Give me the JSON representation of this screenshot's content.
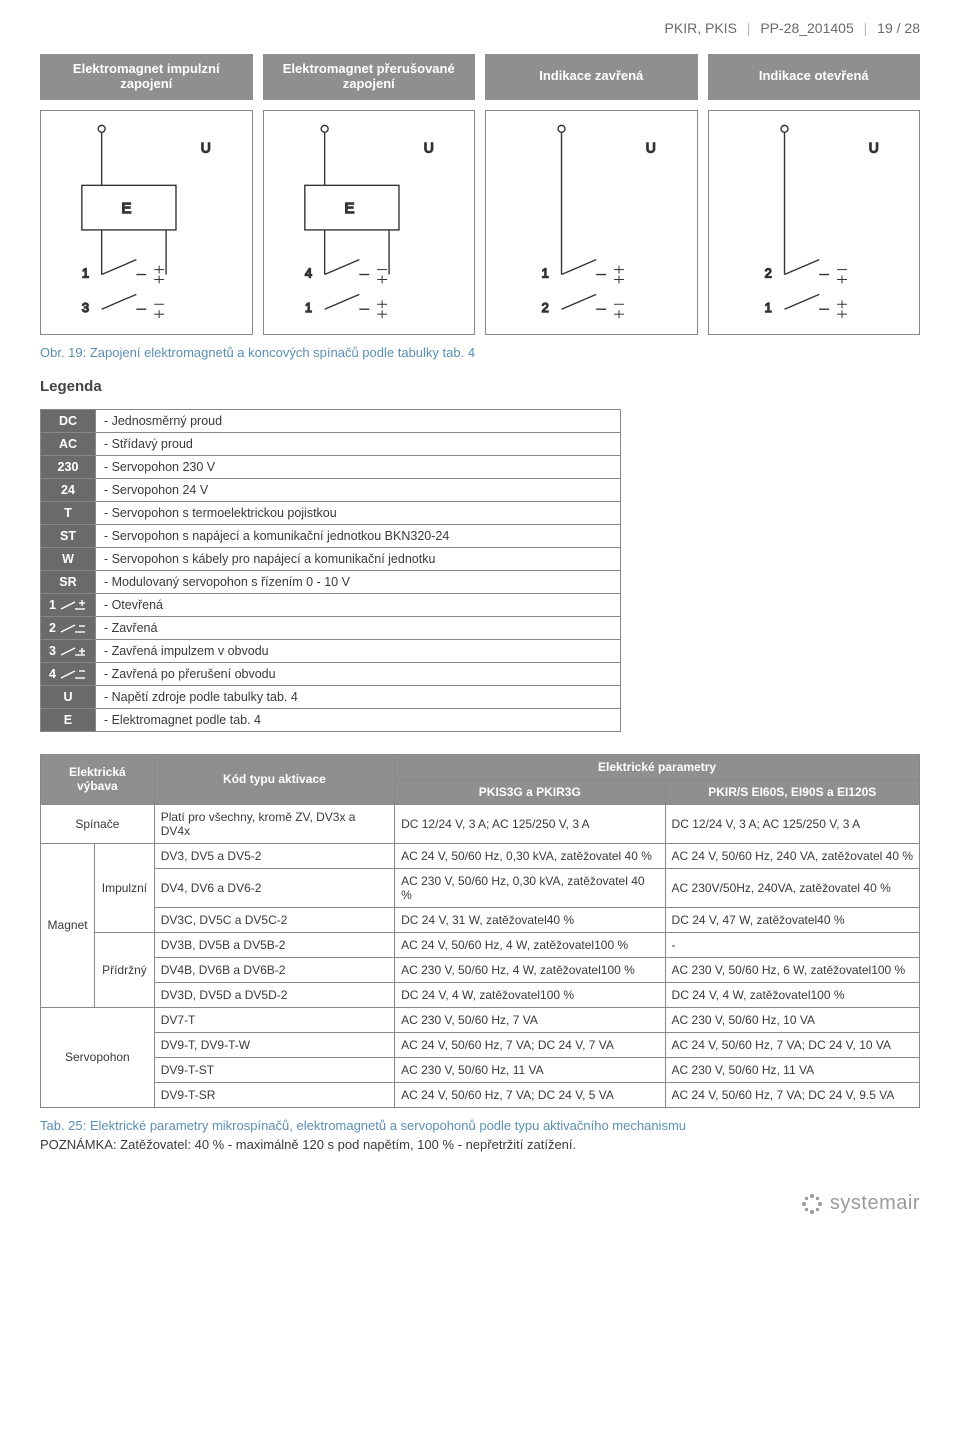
{
  "header": {
    "left": "PKIR, PKIS",
    "mid": "PP-28_201405",
    "right": "19 / 28"
  },
  "col_heads": [
    "Elektromagnet impulzní zapojení",
    "Elektromagnet přerušované zapojení",
    "Indikace zavřená",
    "Indikace otevřená"
  ],
  "caption_fig": "Obr. 19: Zapojení elektromagnetů a koncových spínačů podle tabulky tab. 4",
  "legenda_title": "Legenda",
  "legenda_rows": [
    {
      "k": "DC",
      "v": "- Jednosměrný proud"
    },
    {
      "k": "AC",
      "v": "- Střídavý proud"
    },
    {
      "k": "230",
      "v": "- Servopohon 230 V"
    },
    {
      "k": "24",
      "v": "- Servopohon 24 V"
    },
    {
      "k": "T",
      "v": "- Servopohon s termoelektrickou pojistkou"
    },
    {
      "k": "ST",
      "v": "- Servopohon s napájecí a komunikační jednotkou BKN320-24"
    },
    {
      "k": "W",
      "v": "- Servopohon s kábely pro napájecí a komunikační jednotku"
    },
    {
      "k": "SR",
      "v": "- Modulovaný servopohon s řízením 0 - 10 V"
    }
  ],
  "legenda_sym": [
    {
      "n": "1",
      "v": "- Otevřená"
    },
    {
      "n": "2",
      "v": "- Zavřená"
    },
    {
      "n": "3",
      "v": "- Zavřená impulzem v obvodu"
    },
    {
      "n": "4",
      "v": "- Zavřená po přerušení obvodu"
    }
  ],
  "legenda_tail": [
    {
      "k": "U",
      "v": "- Napětí zdroje podle tabulky tab. 4"
    },
    {
      "k": "E",
      "v": "- Elektromagnet podle tab. 4"
    }
  ],
  "table_head": {
    "c1": "Elektrická výbava",
    "c2": "Kód typu aktivace",
    "grp": "Elektrické parametry",
    "c3": "PKIS3G a PKIR3G",
    "c4": "PKIR/S EI60S, EI90S a EI120S"
  },
  "row_spin": {
    "l": "Spínače",
    "c2": "Platí pro všechny, kromě ZV, DV3x a DV4x",
    "c3": "DC 12/24 V, 3 A; AC 125/250 V, 3 A",
    "c4": "DC 12/24 V, 3 A; AC 125/250 V, 3 A"
  },
  "magnet_label": "Magnet",
  "impulz_label": "Impulzní",
  "pridrz_label": "Přídržný",
  "servo_label": "Servopohon",
  "magnet_rows": [
    {
      "c2": "DV3, DV5 a DV5-2",
      "c3": "AC 24 V, 50/60 Hz, 0,30 kVA, zatěžovatel 40 %",
      "c4": "AC 24 V, 50/60 Hz, 240 VA, zatěžovatel 40 %"
    },
    {
      "c2": "DV4, DV6 a DV6-2",
      "c3": "AC 230 V, 50/60 Hz, 0,30 kVA, zatěžovatel 40 %",
      "c4": "AC 230V/50Hz, 240VA, zatěžovatel 40 %"
    },
    {
      "c2": "DV3C, DV5C a DV5C-2",
      "c3": "DC 24 V, 31 W, zatěžovatel40 %",
      "c4": "DC 24 V, 47 W, zatěžovatel40 %"
    },
    {
      "c2": "DV3B, DV5B a DV5B-2",
      "c3": "AC 24 V, 50/60 Hz, 4 W, zatěžovatel100 %",
      "c4": "-"
    },
    {
      "c2": "DV4B, DV6B a DV6B-2",
      "c3": "AC 230 V, 50/60 Hz, 4 W, zatěžovatel100 %",
      "c4": "AC 230 V, 50/60 Hz, 6 W, zatěžovatel100 %"
    },
    {
      "c2": "DV3D, DV5D a DV5D-2",
      "c3": "DC 24 V, 4 W, zatěžovatel100 %",
      "c4": "DC 24 V, 4 W, zatěžovatel100 %"
    }
  ],
  "servo_rows": [
    {
      "c2": "DV7-T",
      "c3": "AC 230 V, 50/60 Hz, 7 VA",
      "c4": "AC 230 V, 50/60 Hz, 10 VA"
    },
    {
      "c2": "DV9-T, DV9-T-W",
      "c3": "AC 24 V, 50/60 Hz, 7 VA; DC 24 V, 7 VA",
      "c4": "AC 24 V, 50/60 Hz, 7 VA; DC 24 V, 10 VA"
    },
    {
      "c2": "DV9-T-ST",
      "c3": "AC 230 V, 50/60 Hz, 11 VA",
      "c4": "AC 230 V, 50/60 Hz, 11 VA"
    },
    {
      "c2": "DV9-T-SR",
      "c3": "AC 24 V, 50/60 Hz, 7 VA; DC 24 V, 5 VA",
      "c4": "AC 24 V, 50/60 Hz, 7 VA; DC 24 V, 9.5 VA"
    }
  ],
  "caption_tab": "Tab. 25: Elektrické parametry mikrospínačů, elektromagnetů a servopohonů podle typu aktivačního mechanismu",
  "note": "POZNÁMKA: Zatěžovatel: 40 % - maximálně 120 s pod napětím, 100 % - nepřetržití zatížení.",
  "footer": "systemair"
}
